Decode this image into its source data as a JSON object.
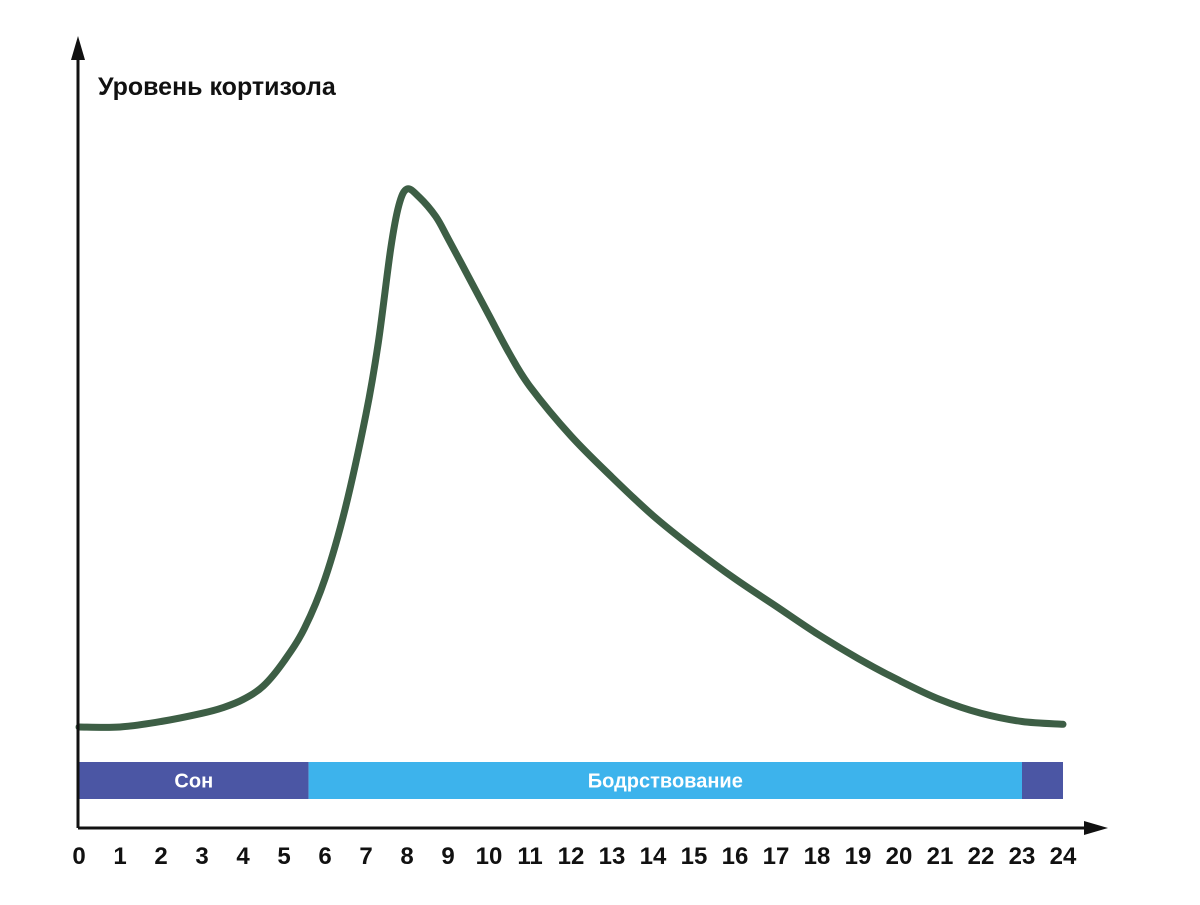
{
  "chart_data": {
    "type": "line",
    "title": "",
    "ylabel": "Уровень кортизола",
    "xlabel": "",
    "xlim": [
      0,
      24
    ],
    "ylim": [
      0,
      100
    ],
    "y_ticks_shown": false,
    "grid": false,
    "legend": "none",
    "x_ticks": [
      "0",
      "1",
      "2",
      "3",
      "4",
      "5",
      "6",
      "7",
      "8",
      "9",
      "10",
      "11",
      "12",
      "13",
      "14",
      "15",
      "16",
      "17",
      "18",
      "19",
      "20",
      "21",
      "22",
      "23",
      "24"
    ],
    "series": [
      {
        "color": "#3d5e45",
        "x": [
          0,
          1,
          2,
          3,
          3.5,
          4,
          4.5,
          5,
          5.5,
          6,
          6.5,
          7,
          7.3,
          7.6,
          7.8,
          8,
          8.3,
          8.7,
          9,
          9.5,
          10,
          10.5,
          11,
          12,
          13,
          14,
          15,
          16,
          17,
          18,
          19,
          20,
          21,
          22,
          23,
          24
        ],
        "y": [
          0,
          0,
          1,
          2.5,
          3.5,
          5,
          7.5,
          12,
          18,
          27,
          40,
          57,
          70,
          87,
          95,
          98,
          96.5,
          93,
          89,
          82,
          75,
          68,
          62,
          53,
          45.5,
          38.5,
          32.5,
          27,
          22,
          17,
          12.5,
          8.5,
          5,
          2.5,
          1,
          0.5
        ]
      }
    ],
    "phase_bar": [
      {
        "label": "Сон",
        "start": 0,
        "end": 5.6,
        "color": "#4b56a4"
      },
      {
        "label": "Бодрствование",
        "start": 5.6,
        "end": 23,
        "color": "#3db3ec"
      },
      {
        "label": "",
        "start": 23,
        "end": 24,
        "color": "#4b56a4"
      }
    ]
  }
}
